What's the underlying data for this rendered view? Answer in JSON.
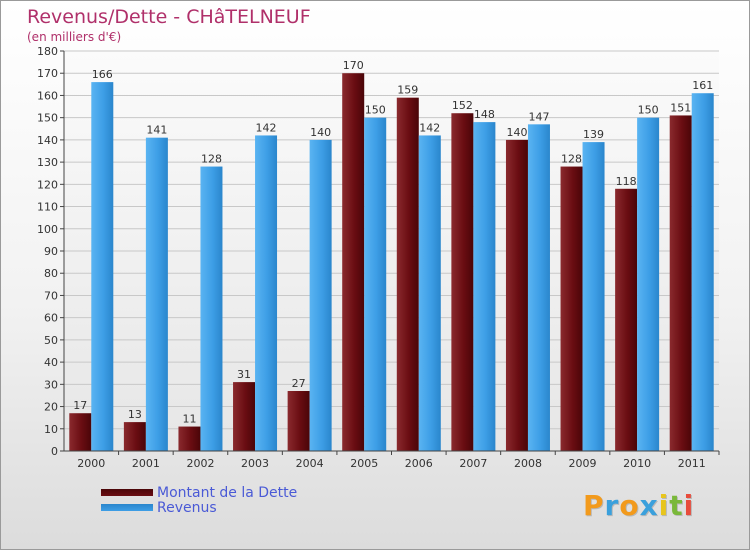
{
  "header": {
    "title": "Revenus/Dette - CHâTELNEUF",
    "subtitle": "(en milliers d'€)"
  },
  "colors": {
    "title": "#b0306a",
    "dette": "#6a0d12",
    "revenus": "#3d9ee6",
    "legend_text": "#4a5ad6"
  },
  "chart_data": {
    "type": "bar",
    "title": "Revenus/Dette - CHâTELNEUF",
    "subtitle": "(en milliers d'€)",
    "categories": [
      "2000",
      "2001",
      "2002",
      "2003",
      "2004",
      "2005",
      "2006",
      "2007",
      "2008",
      "2009",
      "2010",
      "2011"
    ],
    "series": [
      {
        "name": "Montant de la Dette",
        "values": [
          17,
          13,
          11,
          31,
          27,
          170,
          159,
          152,
          140,
          128,
          118,
          151
        ]
      },
      {
        "name": "Revenus",
        "values": [
          166,
          141,
          128,
          142,
          140,
          150,
          142,
          148,
          147,
          139,
          150,
          161
        ]
      }
    ],
    "ylim": [
      0,
      180
    ],
    "ytick_step": 10,
    "grid": true,
    "legend": "bottom-left"
  },
  "legend": {
    "items": [
      {
        "label": "Montant de la Dette"
      },
      {
        "label": "Revenus"
      }
    ]
  },
  "logo": {
    "letters": [
      "P",
      "r",
      "o",
      "x",
      "i",
      "t",
      "i"
    ],
    "colors": [
      "#f29a1c",
      "#3aa0dc",
      "#f29a1c",
      "#3aa0dc",
      "#e8c51c",
      "#7ab83a",
      "#e84c3c"
    ]
  }
}
